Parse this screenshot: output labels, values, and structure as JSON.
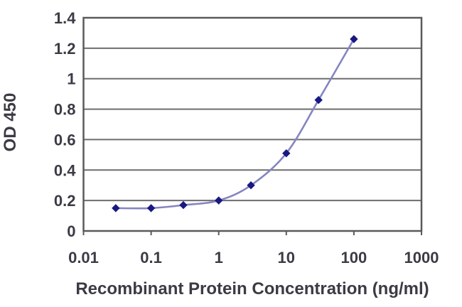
{
  "chart": {
    "colors": {
      "background": "#ffffff",
      "line": "#8585c2",
      "marker": "#191983",
      "grid": "#6e6e6e",
      "axis": "#5a5a5a",
      "text": "#3b3b45"
    }
  },
  "chart_data": {
    "type": "line",
    "title": "",
    "xlabel": "Recombinant Protein Concentration (ng/ml)",
    "ylabel": "OD 450",
    "x_scale": "log",
    "xlim": [
      0.01,
      1000
    ],
    "ylim": [
      0,
      1.4
    ],
    "x": [
      0.03,
      0.1,
      0.3,
      1,
      3,
      10,
      30,
      100
    ],
    "y": [
      0.15,
      0.15,
      0.17,
      0.2,
      0.3,
      0.51,
      0.86,
      1.26
    ],
    "x_ticks": [
      0.01,
      0.1,
      1,
      10,
      100,
      1000
    ],
    "x_tick_labels": [
      "0.01",
      "0.1",
      "1",
      "10",
      "100",
      "1000"
    ],
    "y_ticks": [
      0,
      0.2,
      0.4,
      0.6,
      0.8,
      1,
      1.2,
      1.4
    ],
    "y_tick_labels": [
      "0",
      "0.2",
      "0.4",
      "0.6",
      "0.8",
      "1",
      "1.2",
      "1.4"
    ],
    "grid": "horizontal",
    "legend": "none",
    "marker": "diamond"
  }
}
